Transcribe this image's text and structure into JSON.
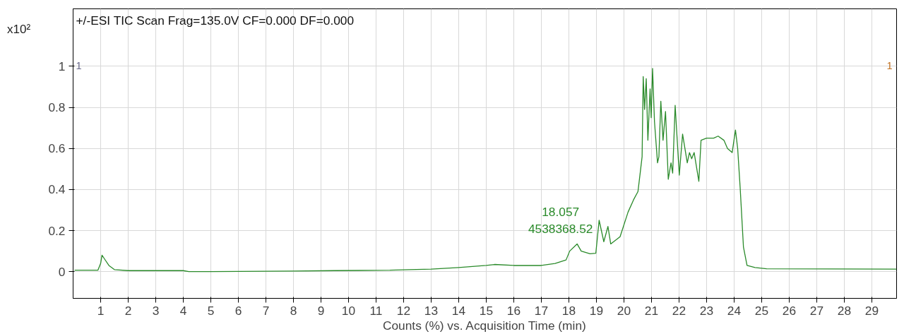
{
  "chart_data": {
    "type": "line",
    "title": "+/-ESI TIC Scan Frag=135.0V CF=0.000 DF=0.000",
    "xlabel": "Counts (%) vs. Acquisition Time (min)",
    "ylabel": "x10²",
    "series": [
      {
        "color": "#2a8a2a",
        "x": [
          0.05,
          0.9,
          1.0,
          1.05,
          1.15,
          1.3,
          1.5,
          2,
          4,
          4.2,
          5,
          8,
          9.5,
          11.5,
          12.2,
          13,
          14,
          15,
          15.3,
          16,
          17.0,
          17.5,
          17.9,
          18.03,
          18.3,
          18.45,
          18.77,
          18.98,
          19.1,
          19.27,
          19.42,
          19.52,
          19.86,
          20.15,
          20.35,
          20.51,
          20.59,
          20.66,
          20.7,
          20.75,
          20.81,
          20.87,
          20.95,
          20.99,
          21.04,
          21.11,
          21.22,
          21.27,
          21.34,
          21.42,
          21.51,
          21.61,
          21.71,
          21.77,
          21.86,
          22.01,
          22.13,
          22.3,
          22.38,
          22.46,
          22.55,
          22.72,
          22.8,
          23.0,
          23.26,
          23.42,
          23.63,
          23.76,
          23.93,
          24.05,
          24.13,
          24.22,
          24.34,
          24.47,
          24.76,
          25.18,
          29.9
        ],
        "values": [
          0.007,
          0.007,
          0.04,
          0.08,
          0.06,
          0.03,
          0.01,
          0.005,
          0.005,
          0.0,
          0.0,
          0.003,
          0.005,
          0.007,
          0.01,
          0.012,
          0.02,
          0.03,
          0.035,
          0.03,
          0.03,
          0.04,
          0.057,
          0.1,
          0.135,
          0.1,
          0.087,
          0.09,
          0.25,
          0.146,
          0.22,
          0.135,
          0.17,
          0.29,
          0.35,
          0.39,
          0.48,
          0.56,
          0.95,
          0.79,
          0.94,
          0.64,
          0.89,
          0.75,
          0.99,
          0.73,
          0.53,
          0.56,
          0.83,
          0.64,
          0.78,
          0.45,
          0.53,
          0.48,
          0.81,
          0.47,
          0.67,
          0.53,
          0.58,
          0.55,
          0.58,
          0.44,
          0.64,
          0.65,
          0.65,
          0.66,
          0.64,
          0.6,
          0.58,
          0.69,
          0.6,
          0.41,
          0.12,
          0.03,
          0.02,
          0.014,
          0.012
        ]
      }
    ],
    "xlim": [
      0,
      29.9
    ],
    "ylim": [
      -0.13,
      1.28
    ],
    "xticks": [
      1,
      2,
      3,
      4,
      5,
      6,
      7,
      8,
      9,
      10,
      11,
      12,
      13,
      14,
      15,
      16,
      17,
      18,
      19,
      20,
      21,
      22,
      23,
      24,
      25,
      26,
      27,
      28,
      29
    ],
    "yticks": [
      0,
      0.2,
      0.4,
      0.6,
      0.8,
      1
    ],
    "grid": true,
    "marker": "none",
    "line_style": "solid",
    "annotations": [
      {
        "text": "18.057\n4538368.52",
        "x": 18.057,
        "y": 0.1
      },
      "1",
      "1"
    ]
  }
}
